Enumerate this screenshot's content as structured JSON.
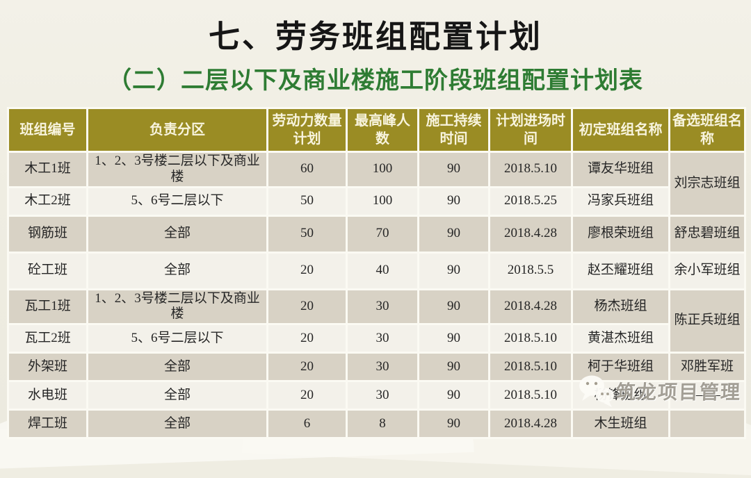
{
  "slide": {
    "title": "七、劳务班组配置计划",
    "subtitle": "（二）二层以下及商业楼施工阶段班组配置计划表"
  },
  "table": {
    "columns": [
      "班组编号",
      "负责分区",
      "劳动力数量计划",
      "最高峰人数",
      "施工持续时间",
      "计划进场时间",
      "初定班组名称",
      "备选班组名称"
    ],
    "rows": [
      {
        "team": "木工1班",
        "zone": "1、2、3号楼二层以下及商业楼",
        "labor": "60",
        "peak": "100",
        "duration": "90",
        "entry": "2018.5.10",
        "primary": "谭友华班组",
        "backup": "刘宗志班组",
        "backup_rowspan": 2
      },
      {
        "team": "木工2班",
        "zone": "5、6号二层以下",
        "labor": "50",
        "peak": "100",
        "duration": "90",
        "entry": "2018.5.25",
        "primary": "冯家兵班组",
        "backup": null
      },
      {
        "team": "钢筋班",
        "zone": "全部",
        "labor": "50",
        "peak": "70",
        "duration": "90",
        "entry": "2018.4.28",
        "primary": "廖根荣班组",
        "backup": "舒忠碧班组"
      },
      {
        "team": "砼工班",
        "zone": "全部",
        "labor": "20",
        "peak": "40",
        "duration": "90",
        "entry": "2018.5.5",
        "primary": "赵丕耀班组",
        "backup": "余小军班组"
      },
      {
        "team": "瓦工1班",
        "zone": "1、2、3号楼二层以下及商业楼",
        "labor": "20",
        "peak": "30",
        "duration": "90",
        "entry": "2018.4.28",
        "primary": "杨杰班组",
        "backup": "陈正兵班组",
        "backup_rowspan": 2
      },
      {
        "team": "瓦工2班",
        "zone": "5、6号二层以下",
        "labor": "20",
        "peak": "30",
        "duration": "90",
        "entry": "2018.5.10",
        "primary": "黄湛杰班组",
        "backup": null
      },
      {
        "team": "外架班",
        "zone": "全部",
        "labor": "20",
        "peak": "30",
        "duration": "90",
        "entry": "2018.5.10",
        "primary": "柯于华班组",
        "backup": "邓胜军班"
      },
      {
        "team": "水电班",
        "zone": "全部",
        "labor": "20",
        "peak": "30",
        "duration": "90",
        "entry": "2018.5.10",
        "primary": "杨锋班组",
        "backup": "——"
      },
      {
        "team": "焊工班",
        "zone": "全部",
        "labor": "6",
        "peak": "8",
        "duration": "90",
        "entry": "2018.4.28",
        "primary": "木生班组",
        "backup": ""
      }
    ]
  },
  "watermark": {
    "text": "筑龙项目管理",
    "icon": "wechat-icon"
  },
  "colors": {
    "page_bg": "#EFEDE2",
    "header_bg": "#9A8C24",
    "header_text": "#F8F4DE",
    "row_dark": "#D8D2C5",
    "row_light": "#F3F1EA",
    "grid": "#FBFAF3",
    "subtitle_green": "#2E7C33",
    "title_text": "#161616"
  }
}
